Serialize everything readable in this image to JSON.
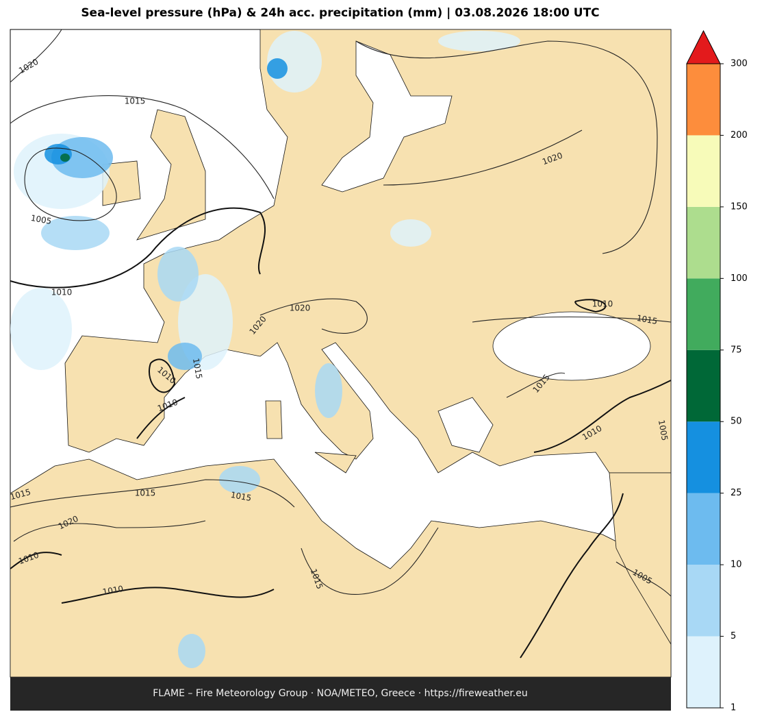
{
  "title": "Sea-level pressure (hPa) & 24h acc. precipitation (mm)  |  03.08.2026 18:00 UTC",
  "footer": "FLAME – Fire Meteorology Group · NOA/METEO, Greece · https://fireweather.eu",
  "colorbar": {
    "levels": [
      1,
      5,
      10,
      25,
      50,
      75,
      100,
      150,
      200,
      300
    ],
    "colors": [
      "#def2fc",
      "#a8d8f5",
      "#6dbbef",
      "#1590e0",
      "#006837",
      "#41ab5d",
      "#addd8e",
      "#f7fbb9",
      "#fd8d3c"
    ],
    "extend_color": "#e31a1c"
  },
  "contour_labels": [
    1020,
    1015,
    1005,
    1010,
    1020,
    1020,
    1010,
    1015,
    1010,
    1020,
    1010,
    1015,
    1015,
    1010,
    1005,
    1015,
    1015,
    1015,
    1020,
    1010,
    1010,
    1015,
    1005
  ]
}
